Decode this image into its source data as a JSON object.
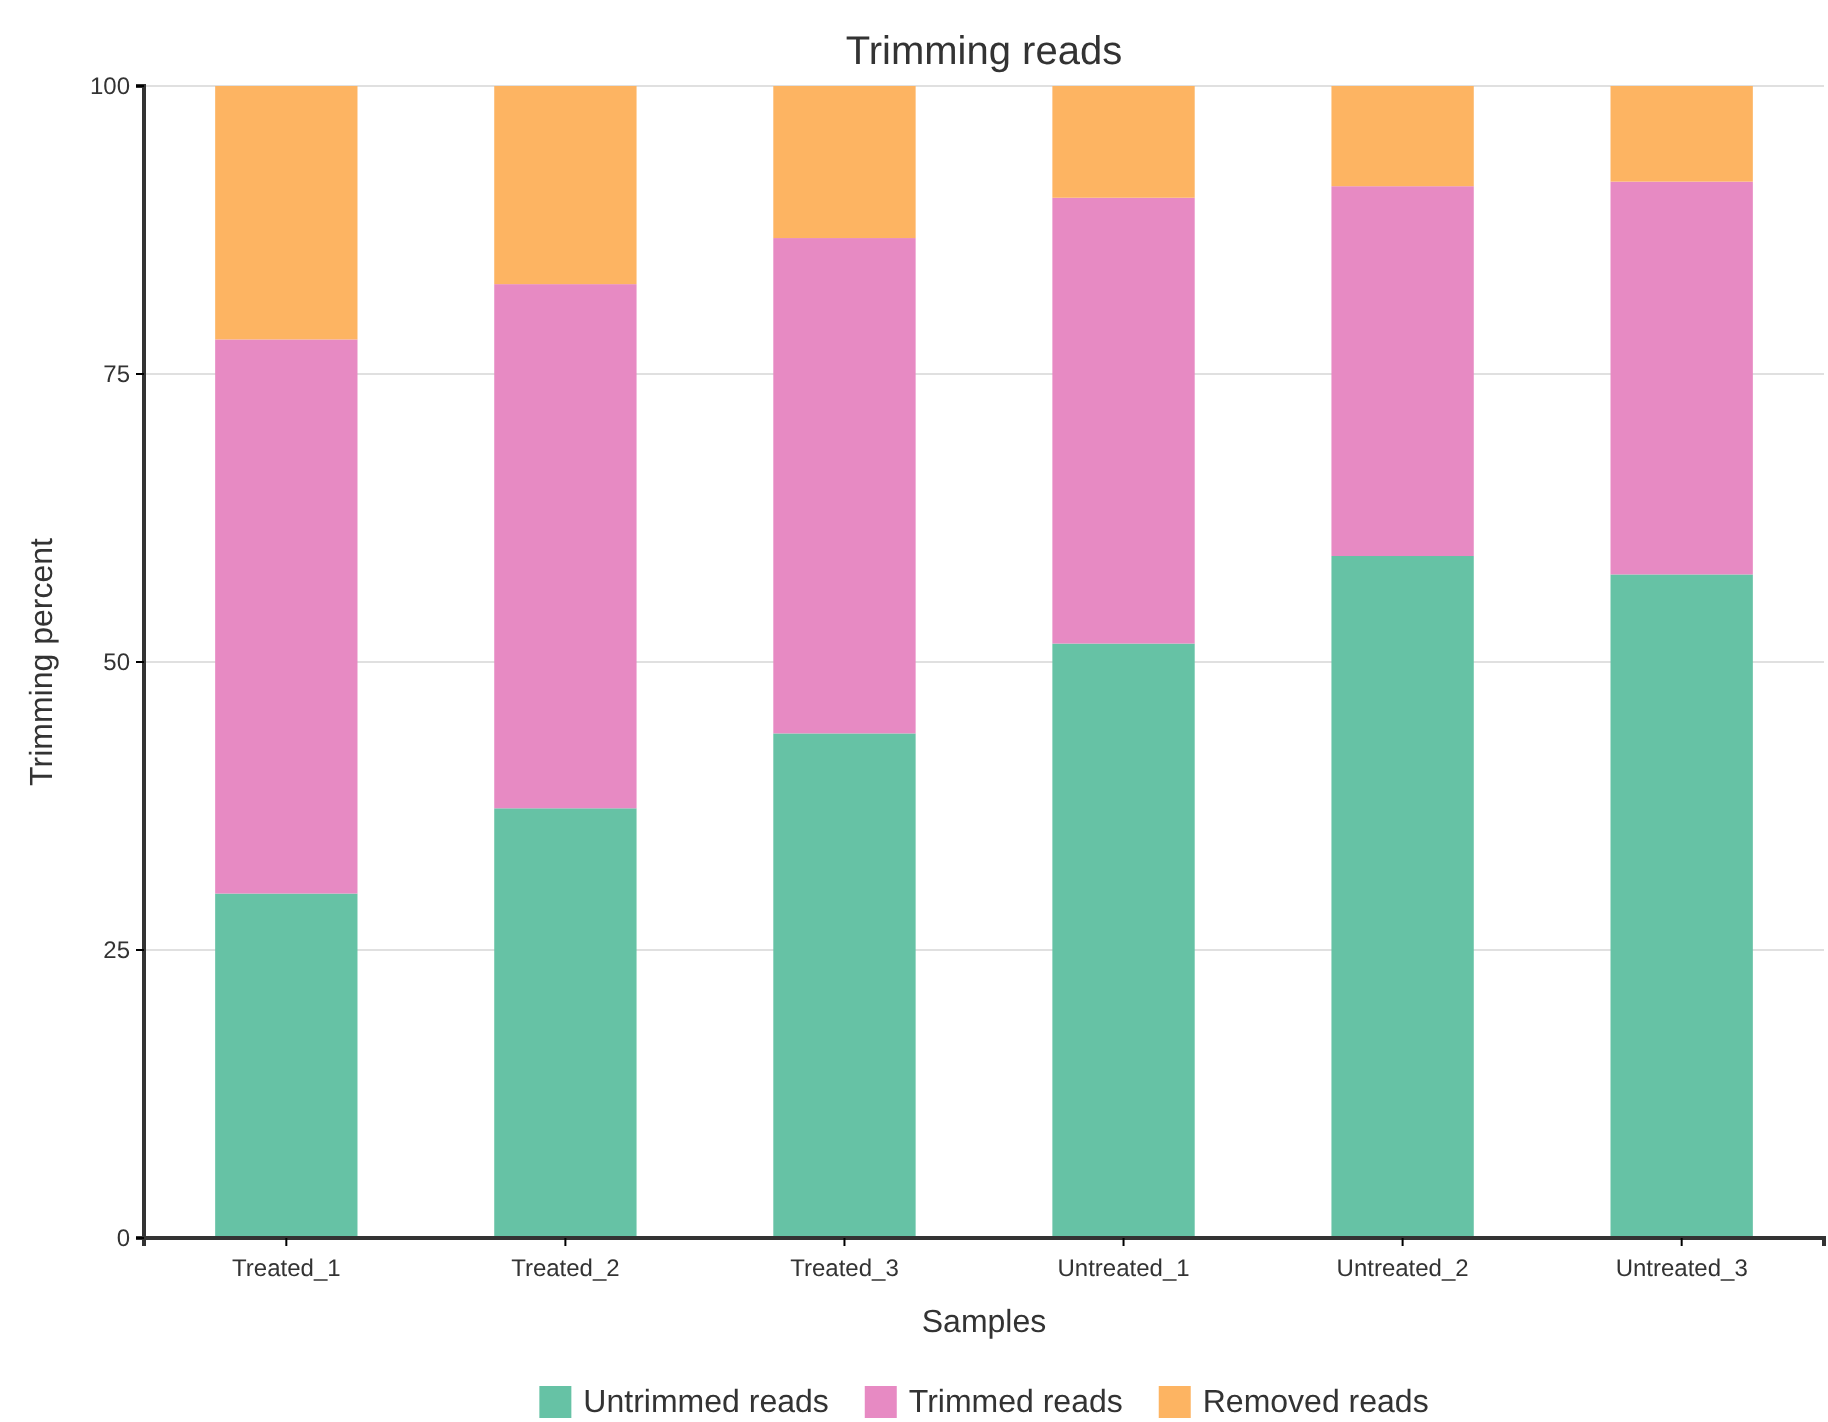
{
  "chart_data": {
    "type": "bar",
    "title": "Trimming reads",
    "xlabel": "Samples",
    "ylabel": "Trimming percent",
    "categories": [
      "Treated_1",
      "Treated_2",
      "Treated_3",
      "Untreated_1",
      "Untreated_2",
      "Untreated_3"
    ],
    "stacked": true,
    "series": [
      {
        "name": "Untrimmed reads",
        "color": "#66c2a5",
        "values": [
          29.9,
          37.3,
          43.8,
          51.6,
          59.2,
          57.6
        ]
      },
      {
        "name": "Trimmed reads",
        "color": "#e78ac3",
        "values": [
          48.1,
          45.5,
          43.0,
          38.7,
          32.1,
          34.1
        ]
      },
      {
        "name": "Removed reads",
        "color": "#fdb462",
        "values": [
          22.0,
          17.2,
          13.2,
          9.7,
          8.7,
          8.3
        ]
      }
    ],
    "ylim": [
      0,
      100
    ],
    "yticks": [
      0,
      25,
      50,
      75,
      100
    ],
    "grid": "y",
    "legend": "bottom"
  }
}
